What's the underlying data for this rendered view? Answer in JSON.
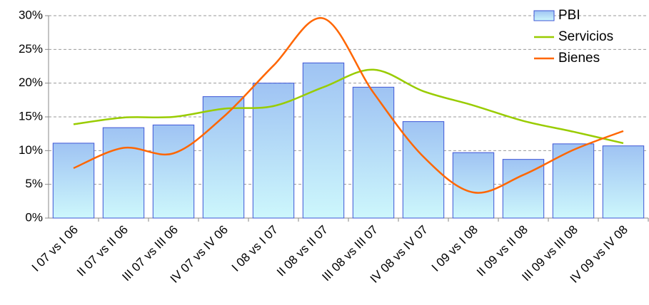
{
  "chart_data": {
    "type": "bar",
    "categories": [
      "I 07 vs I 06",
      "II 07 vs II 06",
      "III 07 vs III 06",
      "IV 07 vs IV 06",
      "I 08 vs I 07",
      "II 08 vs II 07",
      "III 08 vs III 07",
      "IV 08 vs IV 07",
      "I 09 vs I 08",
      "II 09 vs II 08",
      "III 09 vs III 08",
      "IV 09 vs IV 08"
    ],
    "series": [
      {
        "name": "PBI",
        "type": "bar",
        "color": "#3d55d6",
        "values": [
          11.1,
          13.4,
          13.8,
          18,
          20,
          23,
          19.4,
          14.3,
          9.7,
          8.7,
          11,
          10.7
        ]
      },
      {
        "name": "Servicios",
        "type": "line",
        "color": "#99cc00",
        "values": [
          13.9,
          14.9,
          15.0,
          16.2,
          16.6,
          19.4,
          22.0,
          18.8,
          16.7,
          14.4,
          12.8,
          11.1
        ]
      },
      {
        "name": "Bienes",
        "type": "line",
        "color": "#ff6600",
        "values": [
          7.4,
          10.4,
          9.6,
          15.0,
          22.6,
          29.6,
          18.6,
          9.1,
          3.8,
          6.4,
          10.1,
          12.9
        ]
      }
    ],
    "ylim": [
      0,
      30
    ],
    "yticks": [
      {
        "value": 0,
        "label": "0%"
      },
      {
        "value": 5,
        "label": "5%"
      },
      {
        "value": 10,
        "label": "10%"
      },
      {
        "value": 15,
        "label": "15%"
      },
      {
        "value": 20,
        "label": "20%"
      },
      {
        "value": 25,
        "label": "25%"
      },
      {
        "value": 30,
        "label": "30%"
      }
    ],
    "grid": true,
    "legend": "top-right"
  }
}
